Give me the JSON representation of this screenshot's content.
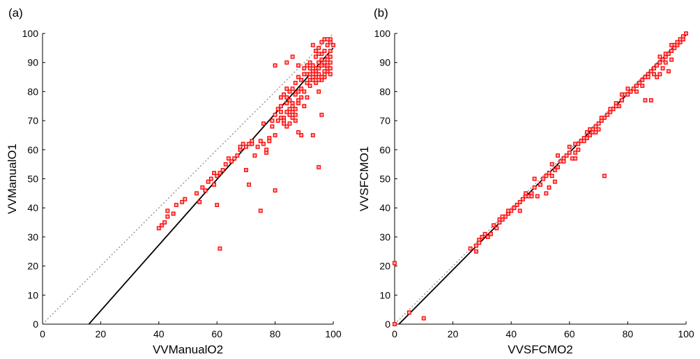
{
  "figure": "scatter comparison",
  "colors": {
    "points": "#ff0000",
    "points_fill": "#ffb3b3",
    "fit": "#000000",
    "identity": "#888888",
    "axis": "#000000"
  },
  "chart_data": [
    {
      "type": "scatter",
      "panel_label": "(a)",
      "xlabel": "VVManualO2",
      "ylabel": "VVManualO1",
      "xlim": [
        0,
        100
      ],
      "ylim": [
        0,
        100
      ],
      "xticks": [
        "0",
        "20",
        "40",
        "60",
        "80",
        "100"
      ],
      "yticks": [
        "0",
        "10",
        "20",
        "30",
        "40",
        "50",
        "60",
        "70",
        "80",
        "90",
        "100"
      ],
      "identity_line": true,
      "fit_line": {
        "slope": 1.13,
        "intercept": -18
      },
      "points": [
        [
          40,
          33
        ],
        [
          41,
          34
        ],
        [
          42,
          35
        ],
        [
          43,
          37
        ],
        [
          43,
          39
        ],
        [
          45,
          38
        ],
        [
          46,
          41
        ],
        [
          48,
          42
        ],
        [
          49,
          43
        ],
        [
          53,
          45
        ],
        [
          54,
          42
        ],
        [
          55,
          47
        ],
        [
          56,
          46
        ],
        [
          57,
          49
        ],
        [
          58,
          50
        ],
        [
          59,
          48
        ],
        [
          59,
          52
        ],
        [
          60,
          51
        ],
        [
          60,
          41
        ],
        [
          61,
          52
        ],
        [
          62,
          53
        ],
        [
          61,
          26
        ],
        [
          63,
          55
        ],
        [
          64,
          57
        ],
        [
          65,
          56
        ],
        [
          66,
          57
        ],
        [
          67,
          58
        ],
        [
          68,
          60
        ],
        [
          68,
          61
        ],
        [
          69,
          62
        ],
        [
          70,
          61
        ],
        [
          70,
          53
        ],
        [
          71,
          48
        ],
        [
          71,
          62
        ],
        [
          72,
          63
        ],
        [
          73,
          58
        ],
        [
          75,
          39
        ],
        [
          75,
          63
        ],
        [
          76,
          69
        ],
        [
          77,
          59
        ],
        [
          77,
          60
        ],
        [
          78,
          64
        ],
        [
          79,
          70
        ],
        [
          79,
          68
        ],
        [
          80,
          46
        ],
        [
          80,
          72
        ],
        [
          81,
          74
        ],
        [
          82,
          73
        ],
        [
          82,
          75
        ],
        [
          83,
          71
        ],
        [
          83,
          70
        ],
        [
          84,
          76
        ],
        [
          84,
          78
        ],
        [
          85,
          77
        ],
        [
          85,
          72
        ],
        [
          86,
          73
        ],
        [
          86,
          76
        ],
        [
          87,
          70
        ],
        [
          87,
          74
        ],
        [
          88,
          80
        ],
        [
          88,
          76
        ],
        [
          89,
          81
        ],
        [
          89,
          65
        ],
        [
          90,
          75
        ],
        [
          91,
          86
        ],
        [
          91,
          78
        ],
        [
          92,
          88
        ],
        [
          92,
          84
        ],
        [
          93,
          87
        ],
        [
          93,
          65
        ],
        [
          94,
          85
        ],
        [
          94,
          88
        ],
        [
          95,
          54
        ],
        [
          95,
          90
        ],
        [
          95,
          86
        ],
        [
          96,
          91
        ],
        [
          96,
          93
        ],
        [
          96,
          72
        ],
        [
          97,
          94
        ],
        [
          97,
          89
        ],
        [
          97,
          85
        ],
        [
          98,
          96
        ],
        [
          98,
          92
        ],
        [
          98,
          87
        ],
        [
          99,
          97
        ],
        [
          99,
          98
        ],
        [
          99,
          94
        ],
        [
          99,
          90
        ],
        [
          100,
          96
        ],
        [
          94,
          94
        ],
        [
          93,
          96
        ],
        [
          95,
          95
        ],
        [
          96,
          97
        ],
        [
          97,
          98
        ],
        [
          98,
          98
        ],
        [
          94,
          92
        ],
        [
          95,
          93
        ],
        [
          92,
          90
        ],
        [
          93,
          89
        ],
        [
          94,
          87
        ],
        [
          95,
          88
        ],
        [
          96,
          89
        ],
        [
          97,
          90
        ],
        [
          98,
          91
        ],
        [
          99,
          92
        ],
        [
          80,
          89
        ],
        [
          84,
          90
        ],
        [
          86,
          92
        ],
        [
          88,
          89
        ],
        [
          90,
          88
        ],
        [
          91,
          83
        ],
        [
          92,
          82
        ],
        [
          93,
          84
        ],
        [
          94,
          86
        ],
        [
          95,
          80
        ],
        [
          96,
          84
        ],
        [
          97,
          86
        ],
        [
          98,
          88
        ],
        [
          99,
          86
        ],
        [
          82,
          78
        ],
        [
          83,
          79
        ],
        [
          84,
          81
        ],
        [
          85,
          80
        ],
        [
          86,
          81
        ],
        [
          87,
          79
        ],
        [
          88,
          77
        ],
        [
          89,
          78
        ],
        [
          90,
          80
        ],
        [
          84,
          68
        ],
        [
          85,
          69
        ],
        [
          86,
          71
        ],
        [
          87,
          72
        ],
        [
          88,
          66
        ],
        [
          81,
          70
        ],
        [
          82,
          71
        ],
        [
          83,
          69
        ],
        [
          85,
          74
        ],
        [
          86,
          75
        ],
        [
          84,
          73
        ],
        [
          80,
          65
        ],
        [
          78,
          63
        ],
        [
          76,
          62
        ],
        [
          74,
          61
        ],
        [
          72,
          62
        ],
        [
          92,
          86
        ],
        [
          93,
          85
        ],
        [
          94,
          83
        ],
        [
          95,
          84
        ],
        [
          96,
          85
        ],
        [
          97,
          87
        ],
        [
          98,
          89
        ],
        [
          99,
          88
        ],
        [
          91,
          89
        ],
        [
          90,
          86
        ],
        [
          89,
          84
        ],
        [
          88,
          85
        ],
        [
          87,
          83
        ]
      ]
    },
    {
      "type": "scatter",
      "panel_label": "(b)",
      "xlabel": "VVSFCMO2",
      "ylabel": "VVSFCMO1",
      "xlim": [
        0,
        100
      ],
      "ylim": [
        0,
        100
      ],
      "xticks": [
        "0",
        "20",
        "40",
        "60",
        "80",
        "100"
      ],
      "yticks": [
        "0",
        "10",
        "20",
        "30",
        "40",
        "50",
        "60",
        "70",
        "80",
        "90",
        "100"
      ],
      "identity_line": true,
      "fit_line": {
        "slope": 1.01,
        "intercept": -1.5
      },
      "points": [
        [
          0,
          21
        ],
        [
          0,
          0
        ],
        [
          5,
          4
        ],
        [
          10,
          2
        ],
        [
          26,
          26
        ],
        [
          28,
          25
        ],
        [
          28,
          27
        ],
        [
          29,
          29
        ],
        [
          30,
          30
        ],
        [
          32,
          30
        ],
        [
          33,
          31
        ],
        [
          35,
          33
        ],
        [
          36,
          35
        ],
        [
          36,
          36
        ],
        [
          37,
          36
        ],
        [
          38,
          37
        ],
        [
          39,
          38
        ],
        [
          40,
          39
        ],
        [
          41,
          40
        ],
        [
          42,
          41
        ],
        [
          43,
          39
        ],
        [
          44,
          43
        ],
        [
          45,
          44
        ],
        [
          46,
          44
        ],
        [
          47,
          45
        ],
        [
          48,
          47
        ],
        [
          48,
          50
        ],
        [
          49,
          44
        ],
        [
          50,
          48
        ],
        [
          51,
          50
        ],
        [
          52,
          51
        ],
        [
          52,
          45
        ],
        [
          53,
          47
        ],
        [
          53,
          52
        ],
        [
          54,
          51
        ],
        [
          54,
          55
        ],
        [
          55,
          53
        ],
        [
          55,
          49
        ],
        [
          56,
          54
        ],
        [
          57,
          56
        ],
        [
          58,
          57
        ],
        [
          59,
          58
        ],
        [
          60,
          59
        ],
        [
          60,
          61
        ],
        [
          61,
          57
        ],
        [
          62,
          62
        ],
        [
          62,
          59
        ],
        [
          63,
          60
        ],
        [
          64,
          63
        ],
        [
          65,
          64
        ],
        [
          66,
          66
        ],
        [
          66,
          64
        ],
        [
          67,
          67
        ],
        [
          67,
          65
        ],
        [
          68,
          67
        ],
        [
          69,
          68
        ],
        [
          70,
          69
        ],
        [
          70,
          67
        ],
        [
          71,
          70
        ],
        [
          72,
          71
        ],
        [
          72,
          51
        ],
        [
          73,
          72
        ],
        [
          74,
          73
        ],
        [
          75,
          74
        ],
        [
          76,
          76
        ],
        [
          77,
          75
        ],
        [
          78,
          77
        ],
        [
          79,
          79
        ],
        [
          80,
          79
        ],
        [
          81,
          80
        ],
        [
          82,
          81
        ],
        [
          83,
          80
        ],
        [
          84,
          83
        ],
        [
          85,
          84
        ],
        [
          86,
          77
        ],
        [
          86,
          85
        ],
        [
          87,
          86
        ],
        [
          88,
          87
        ],
        [
          88,
          77
        ],
        [
          89,
          88
        ],
        [
          90,
          89
        ],
        [
          90,
          85
        ],
        [
          91,
          90
        ],
        [
          91,
          86
        ],
        [
          92,
          91
        ],
        [
          92,
          88
        ],
        [
          93,
          92
        ],
        [
          93,
          93
        ],
        [
          94,
          93
        ],
        [
          94,
          87
        ],
        [
          95,
          94
        ],
        [
          95,
          91
        ],
        [
          96,
          96
        ],
        [
          96,
          95
        ],
        [
          97,
          96
        ],
        [
          98,
          97
        ],
        [
          98,
          98
        ],
        [
          99,
          98
        ],
        [
          99,
          99
        ],
        [
          100,
          100
        ],
        [
          62,
          57
        ],
        [
          63,
          62
        ],
        [
          65,
          63
        ],
        [
          68,
          66
        ],
        [
          69,
          66
        ],
        [
          71,
          71
        ],
        [
          74,
          74
        ],
        [
          76,
          75
        ],
        [
          78,
          79
        ],
        [
          80,
          81
        ],
        [
          83,
          82
        ],
        [
          85,
          82
        ],
        [
          87,
          85
        ],
        [
          89,
          86
        ],
        [
          91,
          92
        ],
        [
          93,
          90
        ],
        [
          95,
          96
        ],
        [
          97,
          97
        ],
        [
          58,
          56
        ],
        [
          56,
          58
        ],
        [
          50,
          48
        ],
        [
          47,
          44
        ],
        [
          45,
          45
        ],
        [
          43,
          42
        ],
        [
          41,
          40
        ],
        [
          39,
          39
        ],
        [
          37,
          37
        ],
        [
          34,
          34
        ],
        [
          31,
          31
        ],
        [
          29,
          28
        ]
      ]
    }
  ]
}
